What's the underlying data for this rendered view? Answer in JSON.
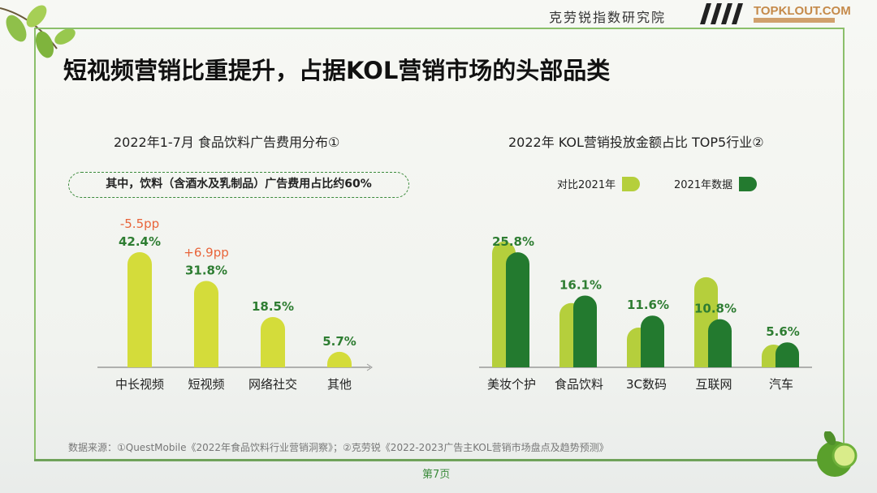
{
  "header": {
    "org": "克劳锐指数研究院",
    "logo": "TOPKLOUT.COM"
  },
  "title": "短视频营销比重提升，占据KOL营销市场的头部品类",
  "note": "其中，饮料（含酒水及乳制品）广告费用占比约60%",
  "colors": {
    "light": "#d4dc3a",
    "lime": "#b5cf3c",
    "dark": "#237a2f",
    "label": "#2e7d32",
    "delta": "#e8643a"
  },
  "chart_data": [
    {
      "type": "bar",
      "title": "2022年1-7月 食品饮料广告费用分布①",
      "categories": [
        "中长视频",
        "短视频",
        "网络社交",
        "其他"
      ],
      "values": [
        42.4,
        31.8,
        18.5,
        5.7
      ],
      "labels": [
        "42.4%",
        "31.8%",
        "18.5%",
        "5.7%"
      ],
      "annotations": [
        "-5.5pp",
        "+6.9pp",
        "",
        ""
      ],
      "ylim": [
        0,
        45
      ]
    },
    {
      "type": "bar",
      "title": "2022年 KOL营销投放金额占比 TOP5行业②",
      "categories": [
        "美妆个护",
        "食品饮料",
        "3C数码",
        "互联网",
        "汽车"
      ],
      "series": [
        {
          "name": "对比2021年",
          "values": [
            28.2,
            14.4,
            8.9,
            20.2,
            5.1
          ]
        },
        {
          "name": "2021年数据",
          "values": [
            25.8,
            16.1,
            11.6,
            10.8,
            5.6
          ],
          "labels": [
            "25.8%",
            "16.1%",
            "11.6%",
            "10.8%",
            "5.6%"
          ]
        }
      ],
      "legend": "top",
      "ylim": [
        0,
        30
      ]
    }
  ],
  "footer": {
    "source": "数据来源：①QuestMobile《2022年食品饮料行业营销洞察》；②克劳锐《2022-2023广告主KOL营销市场盘点及趋势预测》",
    "page": "第7页"
  }
}
